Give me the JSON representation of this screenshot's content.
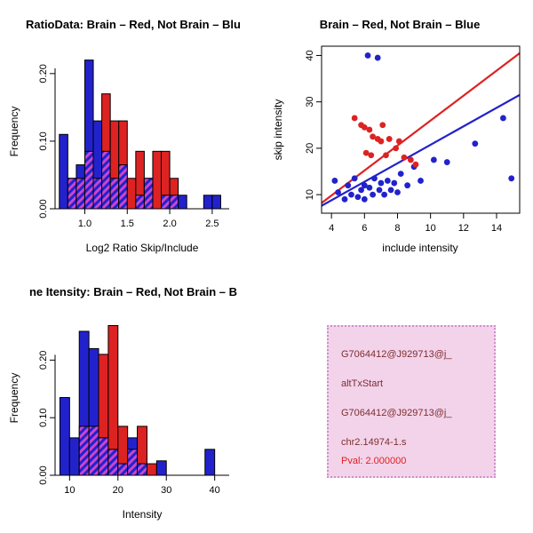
{
  "colors": {
    "blue": "#2222cc",
    "red": "#dd2222",
    "hatch_stripe": "#cc44cc",
    "axis": "#000000",
    "box_bg": "#f3d3ea",
    "box_border": "#cf8fcf",
    "box_text": "#7c2f2f",
    "pval_text": "#e02020"
  },
  "info_box": {
    "lines": [
      "G7064412@J929713@j_",
      "altTxStart",
      "G7064412@J929713@j_",
      "chr2.14974-1.s",
      "Pval: 2.000000"
    ]
  },
  "chart_data": [
    {
      "type": "bar",
      "subtype": "overlaid-histogram",
      "title": "RatioData: Brain – Red, Not Brain – Blu",
      "xlabel": "Log2 Ratio Skip/Include",
      "ylabel": "Frequency",
      "legend": {
        "Brain": "red",
        "Not Brain": "blue"
      },
      "bin_width": 0.1,
      "bins_format": [
        "bin_start",
        "not_brain_blue_freq",
        "brain_red_freq"
      ],
      "bins": [
        [
          0.7,
          0.11,
          0
        ],
        [
          0.8,
          0.045,
          0.045
        ],
        [
          0.9,
          0.065,
          0.045
        ],
        [
          1.0,
          0.22,
          0.085
        ],
        [
          1.1,
          0.13,
          0.045
        ],
        [
          1.2,
          0.085,
          0.17
        ],
        [
          1.3,
          0.045,
          0.13
        ],
        [
          1.4,
          0.065,
          0.13
        ],
        [
          1.5,
          0,
          0.045
        ],
        [
          1.6,
          0.02,
          0.085
        ],
        [
          1.7,
          0.045,
          0.045
        ],
        [
          1.8,
          0,
          0.085
        ],
        [
          1.9,
          0.02,
          0.085
        ],
        [
          2.0,
          0.02,
          0.045
        ],
        [
          2.1,
          0.02,
          0
        ],
        [
          2.4,
          0.02,
          0
        ],
        [
          2.5,
          0.02,
          0
        ]
      ],
      "xlim": [
        0.65,
        2.7
      ],
      "ylim": [
        0,
        0.23
      ],
      "x_ticks": [
        1.0,
        1.5,
        2.0,
        2.5
      ],
      "x_tick_labels": [
        "1.0",
        "1.5",
        "2.0",
        "2.5"
      ],
      "y_ticks": [
        0,
        0.1,
        0.2
      ],
      "y_tick_labels": [
        "0.00",
        "0.10",
        "0.20"
      ]
    },
    {
      "type": "scatter",
      "title": "Brain – Red, Not Brain – Blue",
      "xlabel": "include intensity",
      "ylabel": "skip intensity",
      "xlim": [
        3.4,
        15.4
      ],
      "ylim": [
        6,
        42
      ],
      "x_ticks": [
        4,
        6,
        8,
        10,
        12,
        14
      ],
      "x_tick_labels": [
        "4",
        "6",
        "8",
        "10",
        "12",
        "14"
      ],
      "y_ticks": [
        10,
        20,
        30,
        40
      ],
      "y_tick_labels": [
        "10",
        "20",
        "30",
        "40"
      ],
      "series": [
        {
          "name": "Not Brain",
          "color": "blue",
          "points": [
            [
              4.2,
              13
            ],
            [
              4.4,
              10.5
            ],
            [
              4.8,
              9
            ],
            [
              5.0,
              12
            ],
            [
              5.2,
              10
            ],
            [
              5.4,
              13.5
            ],
            [
              5.6,
              9.5
            ],
            [
              5.8,
              11
            ],
            [
              6.0,
              9
            ],
            [
              6.0,
              12
            ],
            [
              6.2,
              40
            ],
            [
              6.3,
              11.5
            ],
            [
              6.5,
              10
            ],
            [
              6.6,
              13.5
            ],
            [
              6.8,
              39.5
            ],
            [
              6.9,
              11
            ],
            [
              7.0,
              12.5
            ],
            [
              7.2,
              10
            ],
            [
              7.4,
              13
            ],
            [
              7.6,
              11
            ],
            [
              7.8,
              12.5
            ],
            [
              8.0,
              10.5
            ],
            [
              8.2,
              14.5
            ],
            [
              8.6,
              12
            ],
            [
              9.0,
              16
            ],
            [
              9.4,
              13
            ],
            [
              10.2,
              17.5
            ],
            [
              11.0,
              17
            ],
            [
              12.7,
              21
            ],
            [
              14.4,
              26.5
            ],
            [
              14.9,
              13.5
            ]
          ]
        },
        {
          "name": "Brain",
          "color": "red",
          "points": [
            [
              5.4,
              26.5
            ],
            [
              5.8,
              25
            ],
            [
              6.0,
              24.5
            ],
            [
              6.3,
              24
            ],
            [
              6.1,
              19
            ],
            [
              6.4,
              18.5
            ],
            [
              6.5,
              22.5
            ],
            [
              6.8,
              22
            ],
            [
              7.0,
              21.5
            ],
            [
              7.1,
              25
            ],
            [
              7.3,
              18.5
            ],
            [
              7.5,
              22
            ],
            [
              7.9,
              20
            ],
            [
              8.1,
              21.5
            ],
            [
              8.4,
              18
            ],
            [
              8.8,
              17.5
            ],
            [
              9.1,
              16.5
            ]
          ]
        }
      ],
      "lines": [
        {
          "name": "brain-fit",
          "color": "red",
          "from": [
            3.4,
            8.2
          ],
          "to": [
            15.4,
            40.5
          ]
        },
        {
          "name": "not-brain-fit",
          "color": "blue",
          "from": [
            3.4,
            7.6
          ],
          "to": [
            15.4,
            31.5
          ]
        }
      ]
    },
    {
      "type": "bar",
      "subtype": "overlaid-histogram",
      "title": "ne Itensity: Brain – Red, Not Brain – B",
      "xlabel": "Intensity",
      "ylabel": "Frequency",
      "legend": {
        "Brain": "red",
        "Not Brain": "blue"
      },
      "bin_width": 2,
      "bins_format": [
        "bin_start",
        "not_brain_blue_freq",
        "brain_red_freq"
      ],
      "bins": [
        [
          8,
          0.135,
          0
        ],
        [
          10,
          0.065,
          0
        ],
        [
          12,
          0.25,
          0.085
        ],
        [
          14,
          0.22,
          0.085
        ],
        [
          16,
          0.065,
          0.21
        ],
        [
          18,
          0.045,
          0.26
        ],
        [
          20,
          0.02,
          0.085
        ],
        [
          22,
          0.065,
          0.045
        ],
        [
          24,
          0.02,
          0.085
        ],
        [
          26,
          0,
          0.02
        ],
        [
          28,
          0.025,
          0
        ],
        [
          38,
          0.045,
          0
        ]
      ],
      "xlim": [
        7,
        43
      ],
      "ylim": [
        0,
        0.27
      ],
      "x_ticks": [
        10,
        20,
        30,
        40
      ],
      "x_tick_labels": [
        "10",
        "20",
        "30",
        "40"
      ],
      "y_ticks": [
        0,
        0.1,
        0.2
      ],
      "y_tick_labels": [
        "0.00",
        "0.10",
        "0.20"
      ]
    }
  ]
}
